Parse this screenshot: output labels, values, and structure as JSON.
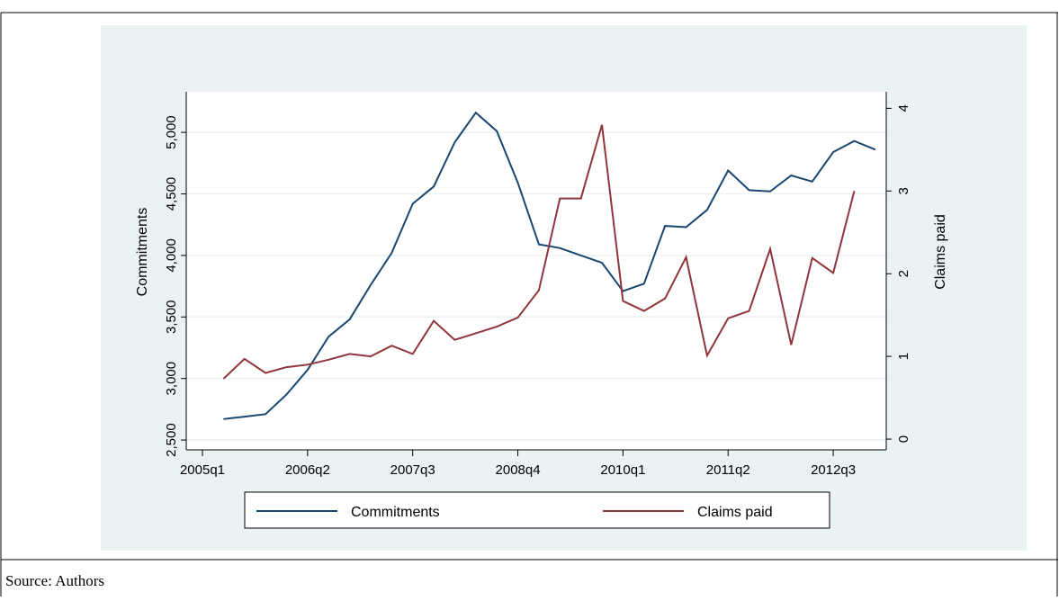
{
  "chart_data": {
    "type": "line",
    "x": [
      181,
      182,
      183,
      184,
      185,
      186,
      187,
      188,
      189,
      190,
      191,
      192,
      193,
      194,
      195,
      196,
      197,
      198,
      199,
      200,
      201,
      202,
      203,
      204,
      205,
      206,
      207,
      208,
      209,
      210,
      211,
      212
    ],
    "xlim": [
      179.23,
      212.52
    ],
    "xticks": [
      {
        "value": 180,
        "label": "2005q1"
      },
      {
        "value": 185,
        "label": "2006q2"
      },
      {
        "value": 190,
        "label": "2007q3"
      },
      {
        "value": 195,
        "label": "2008q4"
      },
      {
        "value": 200,
        "label": "2010q1"
      },
      {
        "value": 205,
        "label": "2011q2"
      },
      {
        "value": 210,
        "label": "2012q3"
      }
    ],
    "ylim": [
      2420,
      5330
    ],
    "yticks": [
      {
        "value": 2500,
        "label": "2,500"
      },
      {
        "value": 3000,
        "label": "3,000"
      },
      {
        "value": 3500,
        "label": "3,500"
      },
      {
        "value": 4000,
        "label": "4,000"
      },
      {
        "value": 4500,
        "label": "4,500"
      },
      {
        "value": 5000,
        "label": "5,000"
      }
    ],
    "y2lim": [
      -0.13,
      4.2
    ],
    "y2ticks": [
      0,
      1,
      2,
      3,
      4
    ],
    "ylabel": "Commitments",
    "y2label": "Claims paid",
    "grid": true,
    "series": [
      {
        "name": "Commitments",
        "color": "#1a476f",
        "values": [
          2670,
          2690,
          2710,
          2870,
          3070,
          3340,
          3480,
          3760,
          4020,
          4420,
          4560,
          4920,
          5160,
          5010,
          4590,
          4090,
          4060,
          4000,
          3940,
          3710,
          3770,
          4240,
          4230,
          4370,
          4690,
          4530,
          4520,
          4650,
          4600,
          4840,
          4930,
          4860
        ]
      },
      {
        "name": "Claims paid",
        "color": "#90353b",
        "axis": "y2",
        "values": [
          0.73,
          0.97,
          0.8,
          0.87,
          0.9,
          0.96,
          1.03,
          1.0,
          1.13,
          1.03,
          1.43,
          1.2,
          1.28,
          1.36,
          1.47,
          1.8,
          2.91,
          2.91,
          3.8,
          1.67,
          1.55,
          1.7,
          2.2,
          1.01,
          1.46,
          1.55,
          2.3,
          1.14,
          2.19,
          2.01,
          3.0,
          null
        ]
      }
    ]
  },
  "source": "Source: Authors"
}
